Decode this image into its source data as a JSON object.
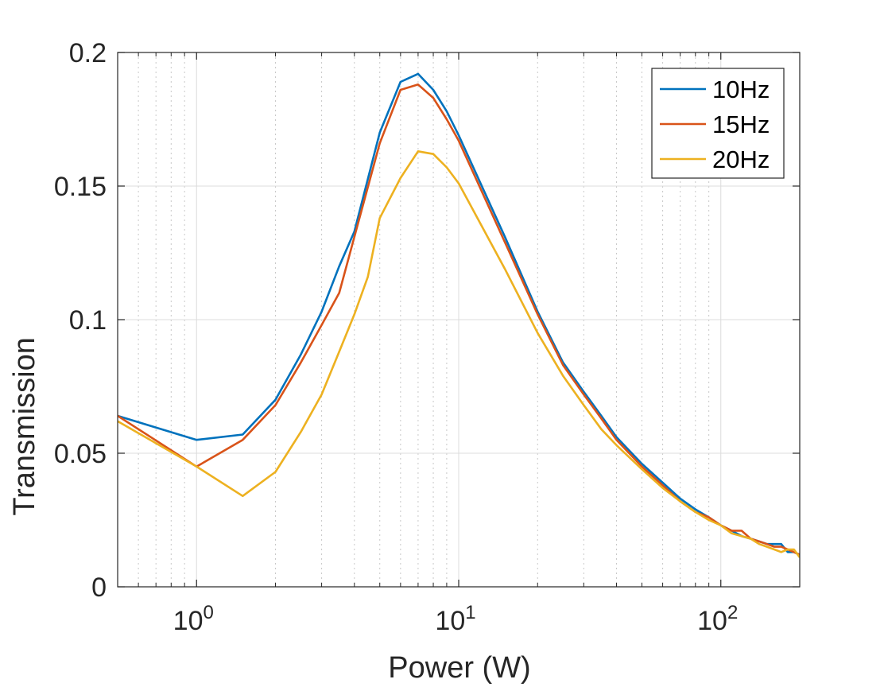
{
  "chart_data": {
    "type": "line",
    "title": "",
    "xlabel": "Power (W)",
    "ylabel": "Transmission",
    "xscale": "log",
    "xlim": [
      0.5,
      200
    ],
    "ylim": [
      0,
      0.2
    ],
    "grid": true,
    "legend_position": "top-right",
    "x_tick_labels": [
      {
        "base": "10",
        "exp": "0",
        "value": 1
      },
      {
        "base": "10",
        "exp": "1",
        "value": 10
      },
      {
        "base": "10",
        "exp": "2",
        "value": 100
      }
    ],
    "y_ticks": [
      0,
      0.05,
      0.1,
      0.15,
      0.2
    ],
    "y_tick_labels": [
      "0",
      "0.05",
      "0.1",
      "0.15",
      "0.2"
    ],
    "series": [
      {
        "name": "10Hz",
        "color": "#0072BD",
        "x": [
          0.5,
          1,
          1.5,
          2,
          2.5,
          3,
          3.5,
          4,
          5,
          6,
          7,
          8,
          9,
          10,
          15,
          20,
          25,
          30,
          35,
          40,
          50,
          60,
          70,
          80,
          90,
          100,
          110,
          120,
          130,
          140,
          150,
          160,
          170,
          180,
          190,
          200
        ],
        "values": [
          0.064,
          0.055,
          0.057,
          0.07,
          0.087,
          0.103,
          0.12,
          0.133,
          0.17,
          0.189,
          0.192,
          0.186,
          0.178,
          0.169,
          0.131,
          0.103,
          0.084,
          0.073,
          0.064,
          0.056,
          0.046,
          0.039,
          0.033,
          0.029,
          0.026,
          0.023,
          0.021,
          0.019,
          0.018,
          0.017,
          0.016,
          0.016,
          0.016,
          0.013,
          0.013,
          0.012
        ]
      },
      {
        "name": "15Hz",
        "color": "#D95319",
        "x": [
          0.5,
          1,
          1.5,
          2,
          2.5,
          3,
          3.5,
          4,
          5,
          6,
          7,
          8,
          9,
          10,
          15,
          20,
          25,
          30,
          35,
          40,
          50,
          60,
          70,
          80,
          90,
          100,
          110,
          120,
          130,
          140,
          150,
          160,
          170,
          180,
          190,
          200
        ],
        "values": [
          0.064,
          0.045,
          0.055,
          0.068,
          0.084,
          0.098,
          0.11,
          0.131,
          0.166,
          0.186,
          0.188,
          0.183,
          0.175,
          0.167,
          0.129,
          0.102,
          0.083,
          0.072,
          0.063,
          0.055,
          0.045,
          0.038,
          0.032,
          0.028,
          0.026,
          0.023,
          0.021,
          0.021,
          0.018,
          0.017,
          0.016,
          0.015,
          0.015,
          0.014,
          0.013,
          0.012
        ]
      },
      {
        "name": "20Hz",
        "color": "#EDB120",
        "x": [
          0.5,
          1,
          1.5,
          2,
          2.5,
          3,
          3.5,
          4,
          4.5,
          5,
          6,
          7,
          8,
          9,
          10,
          15,
          20,
          25,
          30,
          35,
          40,
          50,
          60,
          70,
          80,
          90,
          100,
          110,
          120,
          130,
          140,
          150,
          160,
          170,
          180,
          190,
          200
        ],
        "values": [
          0.062,
          0.045,
          0.034,
          0.043,
          0.058,
          0.072,
          0.088,
          0.102,
          0.116,
          0.138,
          0.153,
          0.163,
          0.162,
          0.157,
          0.151,
          0.119,
          0.095,
          0.079,
          0.068,
          0.059,
          0.053,
          0.044,
          0.037,
          0.032,
          0.028,
          0.025,
          0.023,
          0.02,
          0.019,
          0.018,
          0.016,
          0.015,
          0.014,
          0.013,
          0.014,
          0.014,
          0.011
        ]
      }
    ]
  }
}
